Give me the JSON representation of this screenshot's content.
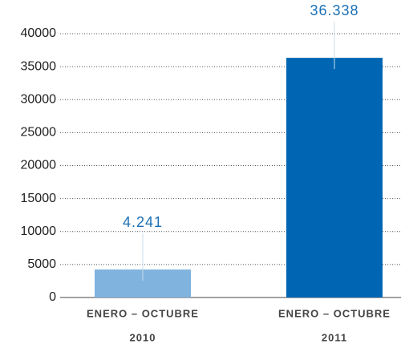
{
  "chart_data": {
    "type": "bar",
    "categories": [
      [
        "ENERO – OCTUBRE",
        "2010"
      ],
      [
        "ENERO – OCTUBRE",
        "2011"
      ]
    ],
    "values": [
      4241,
      36338
    ],
    "value_labels": [
      "4.241",
      "36.338"
    ],
    "colors": [
      "#80b3dd",
      "#0066b3"
    ],
    "ylim": [
      0,
      40000
    ],
    "yticks": [
      0,
      5000,
      10000,
      15000,
      20000,
      25000,
      30000,
      35000,
      40000
    ],
    "grid": true
  }
}
